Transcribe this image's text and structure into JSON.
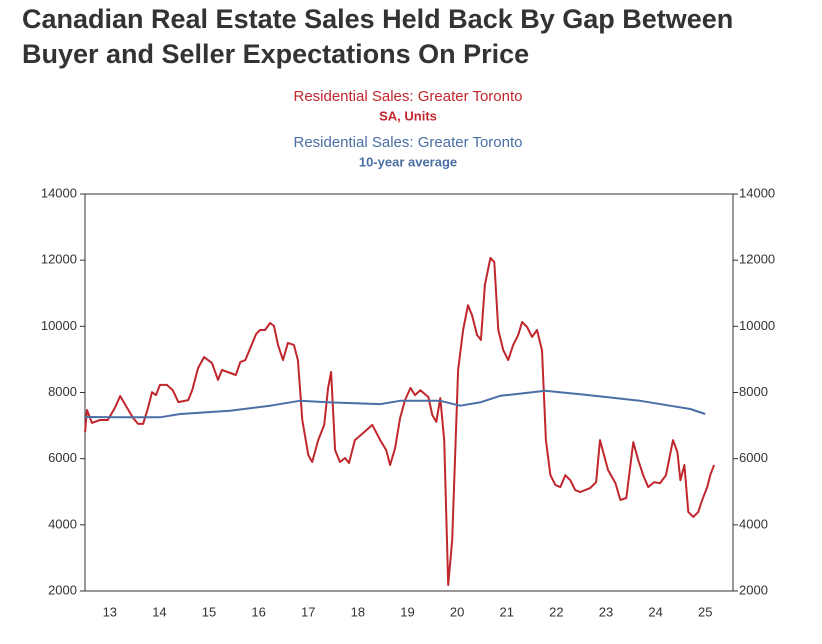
{
  "chart_data": {
    "type": "line",
    "title": "Canadian Real Estate Sales Held Back By Gap Between Buyer and Seller Expectations On Price",
    "xlim": [
      13,
      26.06
    ],
    "xticks": [
      {
        "value": 13.5,
        "label": "13"
      },
      {
        "value": 14.5,
        "label": "14"
      },
      {
        "value": 15.5,
        "label": "15"
      },
      {
        "value": 16.5,
        "label": "16"
      },
      {
        "value": 17.5,
        "label": "17"
      },
      {
        "value": 18.5,
        "label": "18"
      },
      {
        "value": 19.5,
        "label": "19"
      },
      {
        "value": 20.5,
        "label": "20"
      },
      {
        "value": 21.5,
        "label": "21"
      },
      {
        "value": 22.5,
        "label": "22"
      },
      {
        "value": 23.5,
        "label": "23"
      },
      {
        "value": 24.5,
        "label": "24"
      },
      {
        "value": 25.5,
        "label": "25"
      }
    ],
    "ylim": [
      2000,
      14000
    ],
    "yticks": [
      2000,
      4000,
      6000,
      8000,
      10000,
      12000,
      14000
    ],
    "y2lim": [
      2000,
      14000
    ],
    "y2ticks": [
      2000,
      4000,
      6000,
      8000,
      10000,
      12000,
      14000
    ],
    "grid": false,
    "series": [
      {
        "name": "Residential Sales: Greater Toronto",
        "subtitle": "SA, Units",
        "color": "#c0272d",
        "x": [
          13.0,
          13.04,
          13.14,
          13.3,
          13.46,
          13.6,
          13.71,
          13.85,
          13.97,
          14.07,
          14.17,
          14.27,
          14.35,
          14.43,
          14.51,
          14.65,
          14.77,
          14.88,
          15.08,
          15.16,
          15.28,
          15.4,
          15.56,
          15.68,
          15.76,
          15.93,
          16.04,
          16.13,
          16.23,
          16.33,
          16.45,
          16.53,
          16.63,
          16.73,
          16.81,
          16.89,
          16.99,
          17.09,
          17.21,
          17.29,
          17.38,
          17.5,
          17.58,
          17.7,
          17.82,
          17.9,
          17.96,
          18.04,
          18.14,
          18.24,
          18.32,
          18.44,
          18.6,
          18.79,
          18.95,
          19.07,
          19.15,
          19.25,
          19.35,
          19.45,
          19.56,
          19.65,
          19.76,
          19.92,
          20.0,
          20.08,
          20.16,
          20.24,
          20.32,
          20.4,
          20.52,
          20.62,
          20.72,
          20.8,
          20.9,
          20.98,
          21.06,
          21.17,
          21.25,
          21.33,
          21.43,
          21.53,
          21.63,
          21.73,
          21.81,
          21.91,
          22.01,
          22.11,
          22.21,
          22.29,
          22.38,
          22.48,
          22.58,
          22.68,
          22.78,
          22.88,
          22.98,
          23.18,
          23.3,
          23.38,
          23.54,
          23.69,
          23.79,
          23.91,
          24.05,
          24.15,
          24.25,
          24.35,
          24.47,
          24.59,
          24.71,
          24.85,
          24.94,
          25.0,
          25.08,
          25.16,
          25.26,
          25.36,
          25.44,
          25.54,
          25.6,
          25.68
        ],
        "values": [
          6800,
          7470,
          7080,
          7170,
          7170,
          7530,
          7890,
          7530,
          7230,
          7050,
          7050,
          7530,
          8010,
          7920,
          8230,
          8230,
          8070,
          7710,
          7770,
          8070,
          8740,
          9070,
          8890,
          8380,
          8680,
          8590,
          8530,
          8920,
          8980,
          9340,
          9770,
          9890,
          9890,
          10100,
          10010,
          9440,
          8980,
          9500,
          9440,
          8980,
          7170,
          6110,
          5900,
          6560,
          7020,
          8140,
          8620,
          6260,
          5900,
          6020,
          5870,
          6560,
          6770,
          7020,
          6560,
          6260,
          5810,
          6320,
          7230,
          7770,
          8140,
          7920,
          8070,
          7860,
          7320,
          7110,
          7830,
          6560,
          2180,
          3540,
          8680,
          9890,
          10640,
          10340,
          9740,
          9590,
          11250,
          12070,
          11940,
          9890,
          9280,
          8980,
          9440,
          9740,
          10130,
          9980,
          9680,
          9890,
          9280,
          6560,
          5500,
          5200,
          5140,
          5500,
          5350,
          5050,
          4990,
          5110,
          5290,
          6560,
          5660,
          5260,
          4750,
          4810,
          6500,
          5960,
          5500,
          5140,
          5290,
          5260,
          5500,
          6560,
          6200,
          5350,
          5810,
          4390,
          4240,
          4390,
          4750,
          5140,
          5500,
          5810
        ]
      },
      {
        "name": "Residential Sales: Greater Toronto",
        "subtitle": "10-year average",
        "color": "#4a6fa5",
        "x": [
          13.0,
          13.71,
          14.51,
          14.92,
          15.92,
          16.73,
          17.33,
          17.94,
          18.95,
          19.35,
          20.16,
          20.56,
          20.96,
          21.37,
          21.97,
          22.27,
          22.98,
          23.59,
          24.19,
          24.79,
          25.2,
          25.5
        ],
        "values": [
          7260,
          7250,
          7250,
          7350,
          7450,
          7600,
          7750,
          7700,
          7650,
          7750,
          7750,
          7600,
          7700,
          7900,
          8000,
          8050,
          7950,
          7850,
          7750,
          7600,
          7500,
          7350
        ]
      }
    ]
  }
}
